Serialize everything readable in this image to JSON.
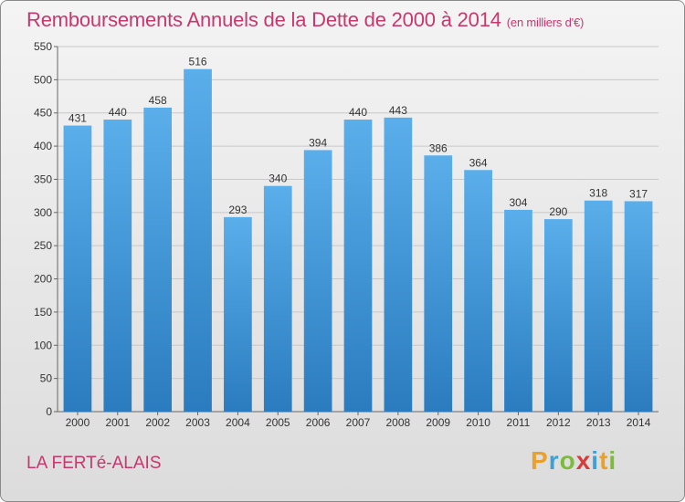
{
  "title": "Remboursements Annuels de la Dette de 2000 à 2014",
  "unit": "(en milliers d'€)",
  "location": "LA FERTé-ALAIS",
  "logo": {
    "letters": [
      "P",
      "r",
      "o",
      "x",
      "i",
      "t",
      "i"
    ],
    "colors": [
      "#e9a12c",
      "#3fa0d8",
      "#7bbd3a",
      "#d93b3b",
      "#3fa0d8",
      "#e9a12c",
      "#7bbd3a"
    ]
  },
  "chart_data": {
    "type": "bar",
    "categories": [
      "2000",
      "2001",
      "2002",
      "2003",
      "2004",
      "2005",
      "2006",
      "2007",
      "2008",
      "2009",
      "2010",
      "2011",
      "2012",
      "2013",
      "2014"
    ],
    "values": [
      431,
      440,
      458,
      516,
      293,
      340,
      394,
      440,
      443,
      386,
      364,
      304,
      290,
      318,
      317
    ],
    "ylim": [
      0,
      550
    ],
    "yticks": [
      0,
      50,
      100,
      150,
      200,
      250,
      300,
      350,
      400,
      450,
      500,
      550
    ],
    "grid": true,
    "bar_color_top": "#5aaeea",
    "bar_color_bottom": "#2a7cbf"
  }
}
